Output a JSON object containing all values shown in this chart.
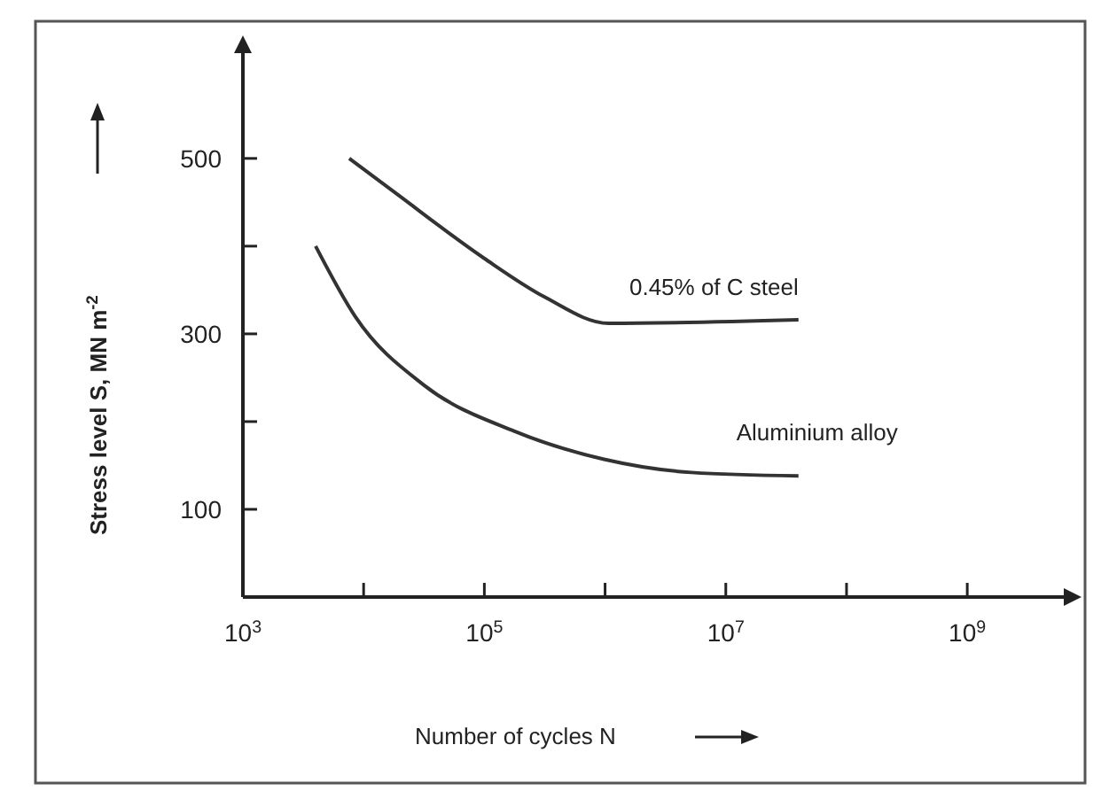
{
  "chart_data": {
    "type": "line",
    "xlabel": "Number of cycles N",
    "ylabel": "Stress level S, MN m$^{-2}$",
    "log": "x",
    "xlim": [
      1000,
      6300000000
    ],
    "ylim": [
      0,
      620
    ],
    "xticks": [
      {
        "value": 1000,
        "label": "10$^{3}$"
      },
      {
        "value": 10000,
        "label": null
      },
      {
        "value": 100000,
        "label": "10$^{5}$"
      },
      {
        "value": 1000000,
        "label": null
      },
      {
        "value": 10000000,
        "label": "10$^{7}$"
      },
      {
        "value": 100000000,
        "label": null
      },
      {
        "value": 1000000000,
        "label": "10$^{9}$"
      }
    ],
    "yticks": [
      100,
      {
        "value": 200,
        "label": null
      },
      300,
      {
        "value": 400,
        "label": null
      },
      500
    ],
    "grid": false,
    "marker": "none",
    "line_style": "solid",
    "series": [
      {
        "name": "0.45% of C steel",
        "color": "#333333",
        "x": [
          7600,
          18600,
          100000,
          316000,
          1070000,
          40000000
        ],
        "values": [
          500,
          460,
          386,
          342,
          312,
          316
        ]
      },
      {
        "name": "Aluminium alloy",
        "color": "#333333",
        "x": [
          4000,
          8500,
          32000,
          178000,
          980000,
          5200000,
          40000000
        ],
        "values": [
          400,
          320,
          241,
          189,
          157,
          142,
          138
        ]
      }
    ]
  }
}
